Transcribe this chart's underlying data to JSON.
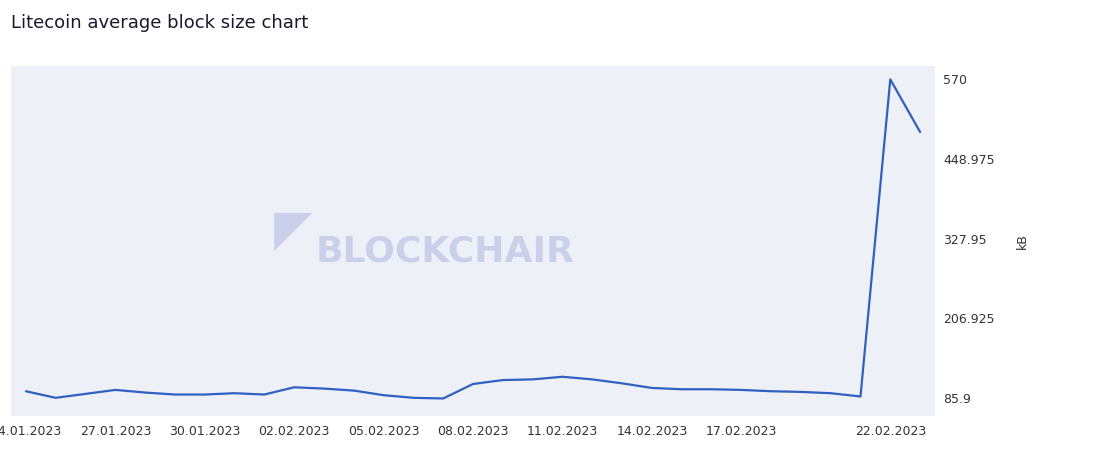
{
  "title": "Litecoin average block size chart",
  "title_fontsize": 13,
  "title_color": "#1a1a2e",
  "ylabel": "kB",
  "ylabel_fontsize": 9,
  "line_color": "#3060c0",
  "line_width": 1.6,
  "background_color": "#ffffff",
  "plot_bg_color": "#eef0f8",
  "yticks": [
    85.9,
    206.925,
    327.95,
    448.975,
    570
  ],
  "ylim": [
    58,
    590
  ],
  "dates": [
    "24.01.2023",
    "25.01.2023",
    "26.01.2023",
    "27.01.2023",
    "28.01.2023",
    "29.01.2023",
    "30.01.2023",
    "31.01.2023",
    "01.02.2023",
    "02.02.2023",
    "03.02.2023",
    "04.02.2023",
    "05.02.2023",
    "06.02.2023",
    "07.02.2023",
    "08.02.2023",
    "09.02.2023",
    "10.02.2023",
    "11.02.2023",
    "12.02.2023",
    "13.02.2023",
    "14.02.2023",
    "15.02.2023",
    "16.02.2023",
    "17.02.2023",
    "18.02.2023",
    "19.02.2023",
    "20.02.2023",
    "21.02.2023",
    "22.02.2023",
    "23.02.2023"
  ],
  "values": [
    96,
    86,
    92,
    98,
    94,
    91,
    91,
    93,
    91,
    102,
    100,
    97,
    90,
    86,
    85,
    107,
    113,
    114,
    118,
    114,
    108,
    101,
    99,
    99,
    98,
    96,
    95,
    93,
    88,
    570,
    490
  ],
  "xtick_dates": [
    "24.01.2023",
    "27.01.2023",
    "30.01.2023",
    "02.02.2023",
    "05.02.2023",
    "08.02.2023",
    "11.02.2023",
    "14.02.2023",
    "17.02.2023",
    "22.02.2023"
  ],
  "xtick_fontsize": 9,
  "ytick_fontsize": 9,
  "watermark_text": "BLOCKCHAIR",
  "watermark_color": "#c5cbe8",
  "watermark_alpha": 0.85,
  "watermark_fontsize": 26
}
